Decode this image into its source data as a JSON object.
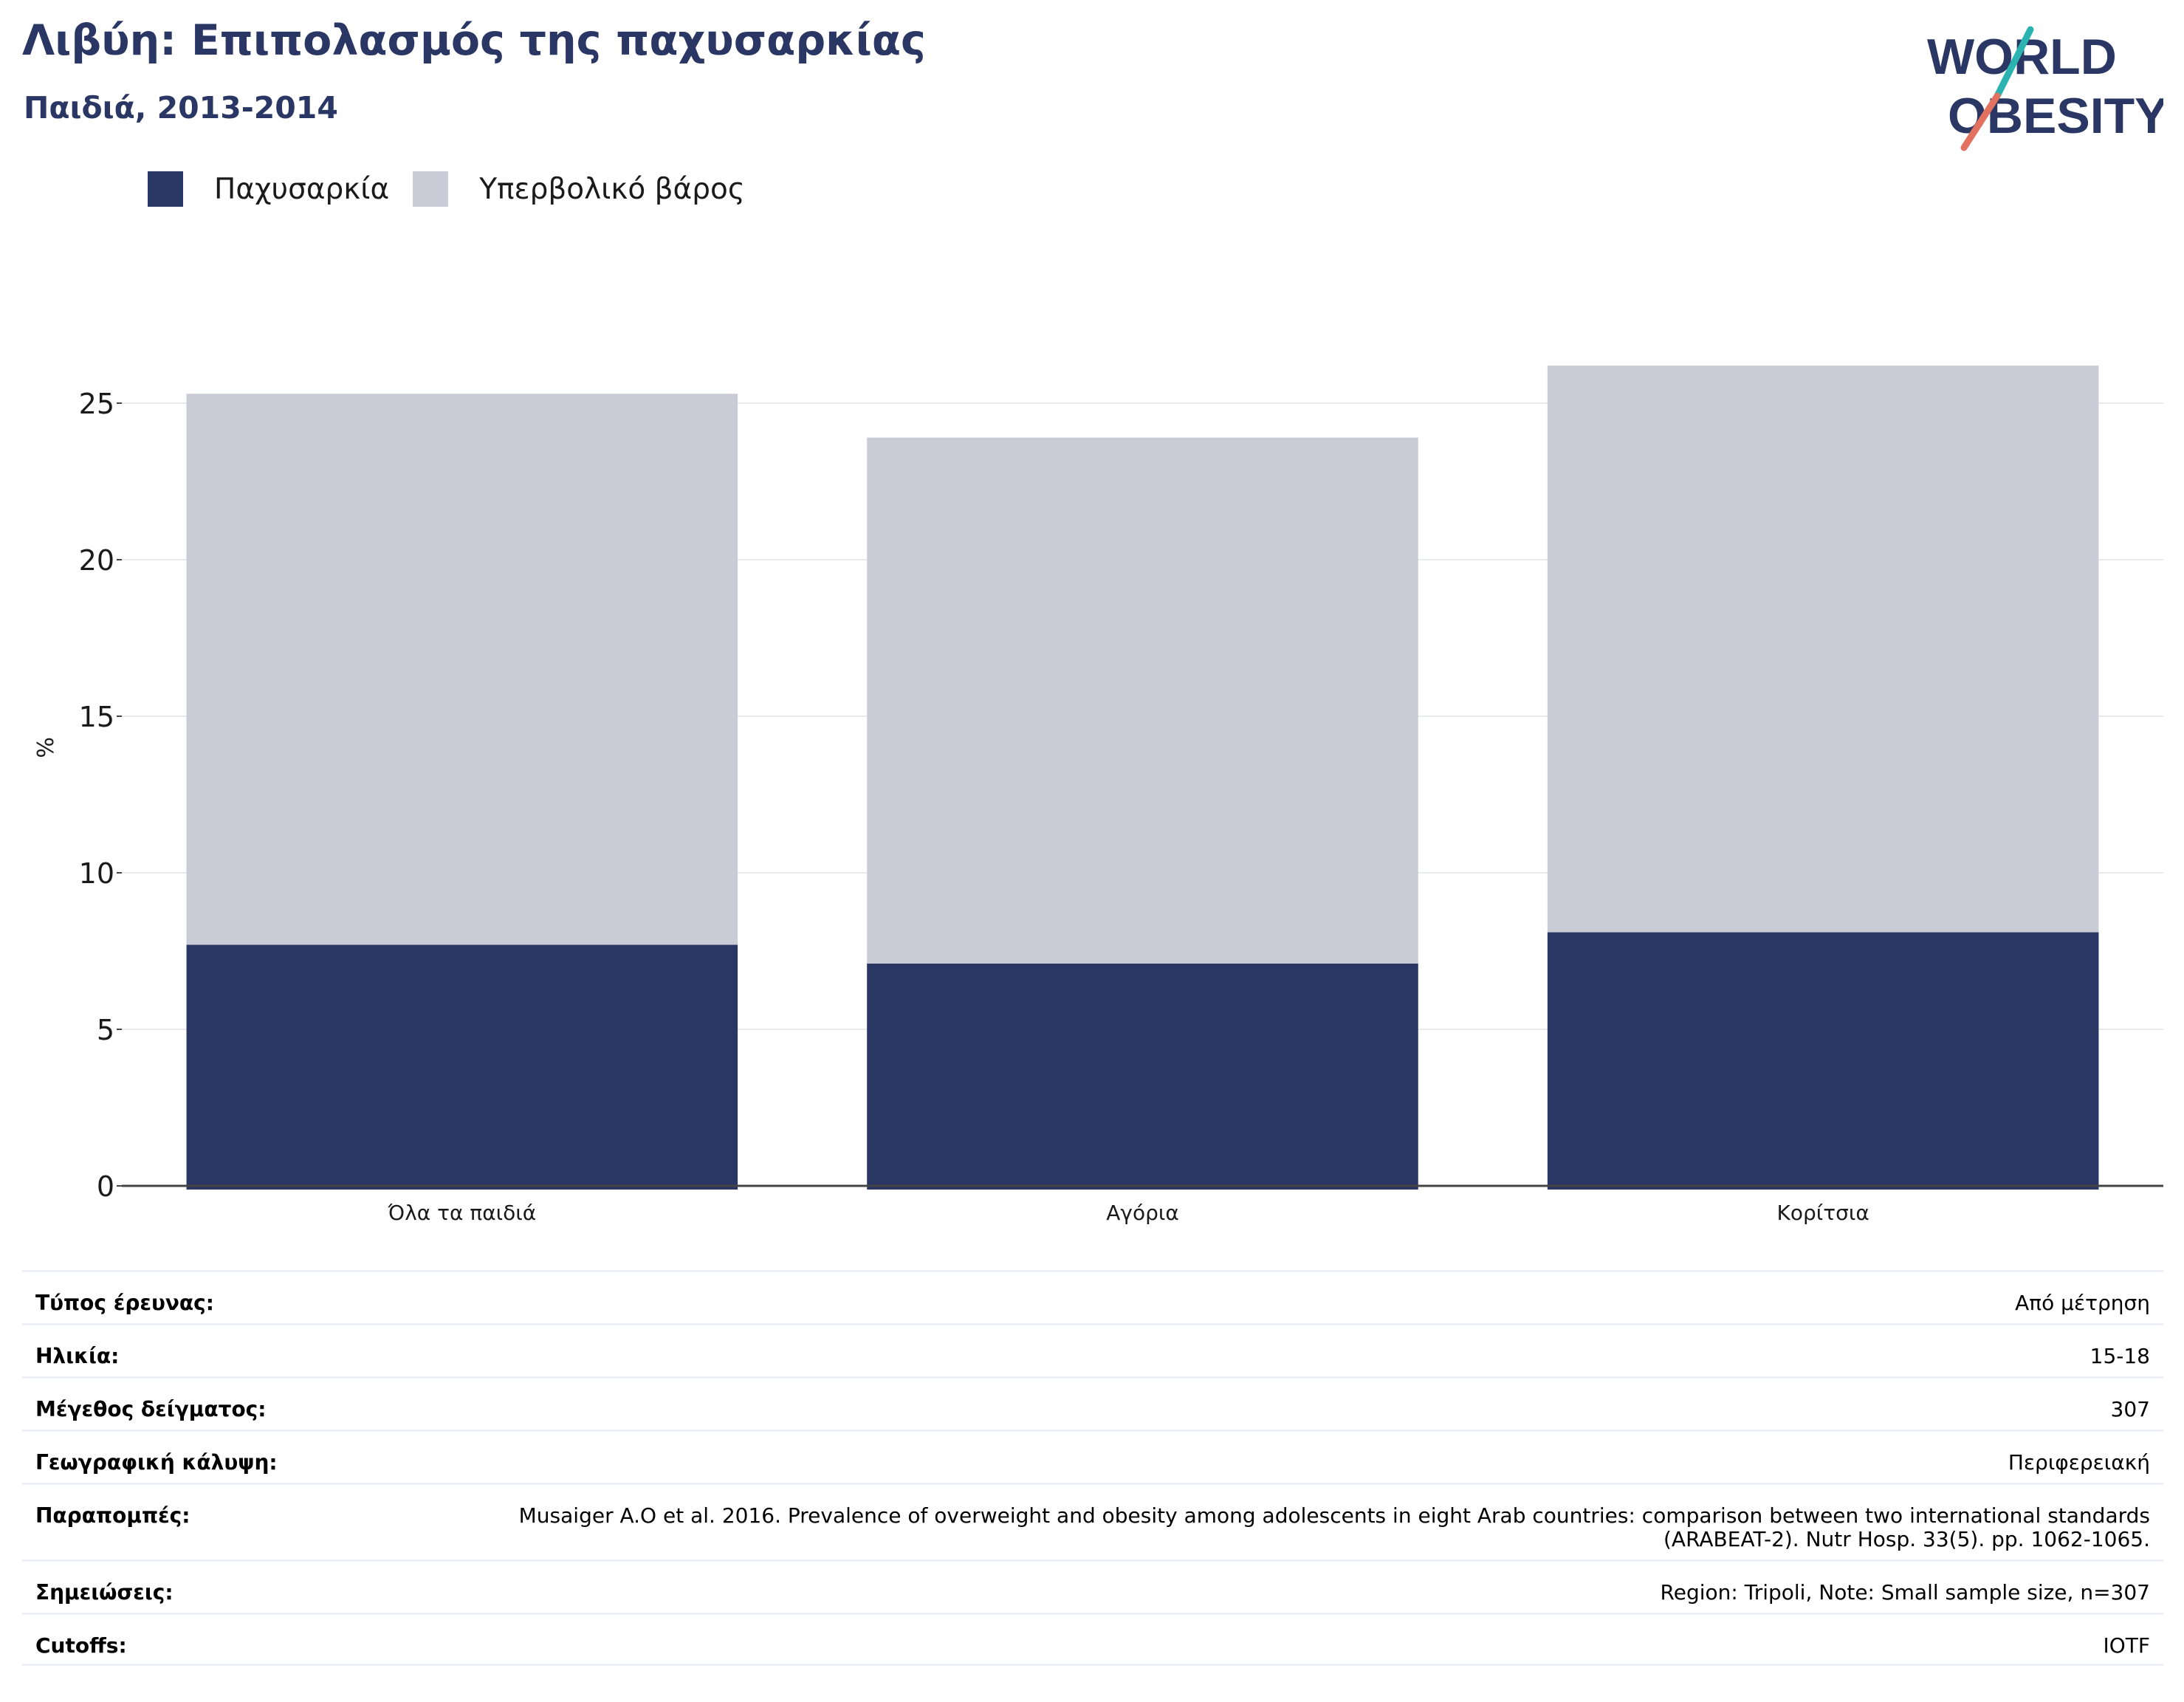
{
  "header": {
    "title": "Λιβύη: Επιπολασμός της παχυσαρκίας",
    "subtitle": "Παιδιά, 2013-2014"
  },
  "logo": {
    "line1": "WORLD",
    "line2": "OBESITY"
  },
  "colors": {
    "obesity": "#2a3663",
    "overweight": "#c9cbd7",
    "title": "#2a3663",
    "logo_slash_teal": "#2ab3b1",
    "logo_slash_red": "#e3715f"
  },
  "legend": [
    {
      "label": "Παχυσαρκία",
      "color": "#2a3663"
    },
    {
      "label": "Υπερβολικό βάρος",
      "color": "#c9cbd7"
    }
  ],
  "chart_data": {
    "type": "bar",
    "stacked": true,
    "categories": [
      "Όλα τα παιδιά",
      "Αγόρια",
      "Κορίτσια"
    ],
    "series": [
      {
        "name": "Παχυσαρκία",
        "values": [
          7.7,
          7.1,
          8.1
        ]
      },
      {
        "name": "Υπερβολικό βάρος",
        "values": [
          17.6,
          16.8,
          18.1
        ]
      }
    ],
    "ylabel": "%",
    "ylim": [
      0,
      28
    ],
    "yticks": [
      0,
      5,
      10,
      15,
      20,
      25
    ],
    "grid": true,
    "legend_position": "top-left"
  },
  "info": [
    {
      "label": "Τύπος έρευνας:",
      "value": "Από μέτρηση"
    },
    {
      "label": "Ηλικία:",
      "value": "15-18"
    },
    {
      "label": "Μέγεθος δείγματος:",
      "value": "307"
    },
    {
      "label": "Γεωγραφική κάλυψη:",
      "value": "Περιφερειακή"
    },
    {
      "label": "Παραπομπές:",
      "value": "Musaiger A.O et al. 2016. Prevalence of overweight and obesity among adolescents in eight Arab countries: comparison between two international standards (ARABEAT-2). Nutr Hosp. 33(5). pp. 1062-1065."
    },
    {
      "label": "Σημειώσεις:",
      "value": "Region: Tripoli, Note: Small sample size, n=307"
    },
    {
      "label": "Cutoffs:",
      "value": "IOTF"
    }
  ]
}
